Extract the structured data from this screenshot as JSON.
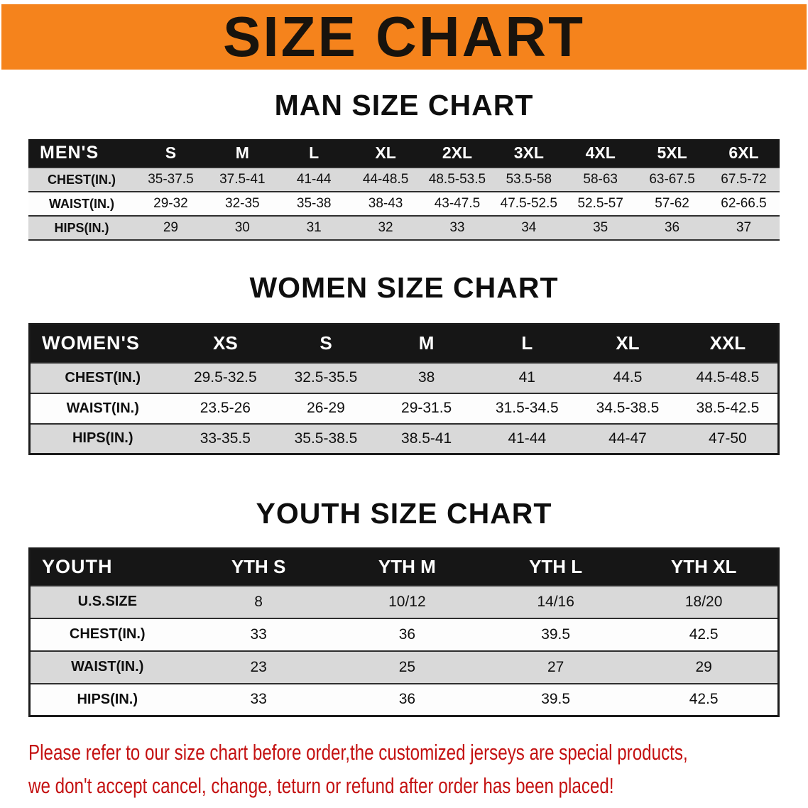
{
  "banner": {
    "title": "SIZE CHART"
  },
  "colors": {
    "banner_bg": "#f5831c",
    "table_header_bg": "#161616",
    "row_stripe_gray": "#d9d9d9",
    "footer_text_red": "#c41111"
  },
  "chart_data": [
    {
      "type": "table",
      "title": "MAN SIZE CHART",
      "header": [
        "MEN'S",
        "S",
        "M",
        "L",
        "XL",
        "2XL",
        "3XL",
        "4XL",
        "5XL",
        "6XL"
      ],
      "rows": [
        [
          "CHEST(IN.)",
          "35-37.5",
          "37.5-41",
          "41-44",
          "44-48.5",
          "48.5-53.5",
          "53.5-58",
          "58-63",
          "63-67.5",
          "67.5-72"
        ],
        [
          "WAIST(IN.)",
          "29-32",
          "32-35",
          "35-38",
          "38-43",
          "43-47.5",
          "47.5-52.5",
          "52.5-57",
          "57-62",
          "62-66.5"
        ],
        [
          "HIPS(IN.)",
          "29",
          "30",
          "31",
          "32",
          "33",
          "34",
          "35",
          "36",
          "37"
        ]
      ]
    },
    {
      "type": "table",
      "title": "WOMEN SIZE CHART",
      "header": [
        "WOMEN'S",
        "XS",
        "S",
        "M",
        "L",
        "XL",
        "XXL"
      ],
      "rows": [
        [
          "CHEST(IN.)",
          "29.5-32.5",
          "32.5-35.5",
          "38",
          "41",
          "44.5",
          "44.5-48.5"
        ],
        [
          "WAIST(IN.)",
          "23.5-26",
          "26-29",
          "29-31.5",
          "31.5-34.5",
          "34.5-38.5",
          "38.5-42.5"
        ],
        [
          "HIPS(IN.)",
          "33-35.5",
          "35.5-38.5",
          "38.5-41",
          "41-44",
          "44-47",
          "47-50"
        ]
      ]
    },
    {
      "type": "table",
      "title": "YOUTH SIZE CHART",
      "header": [
        "YOUTH",
        "YTH S",
        "YTH M",
        "YTH L",
        "YTH XL"
      ],
      "rows": [
        [
          "U.S.SIZE",
          "8",
          "10/12",
          "14/16",
          "18/20"
        ],
        [
          "CHEST(IN.)",
          "33",
          "36",
          "39.5",
          "42.5"
        ],
        [
          "WAIST(IN.)",
          "23",
          "25",
          "27",
          "29"
        ],
        [
          "HIPS(IN.)",
          "33",
          "36",
          "39.5",
          "42.5"
        ]
      ]
    }
  ],
  "footer": {
    "line1": "Please refer to our size chart before order,the customized jerseys are special products,",
    "line2": "we don't accept cancel, change, teturn or refund after order has been placed!"
  }
}
